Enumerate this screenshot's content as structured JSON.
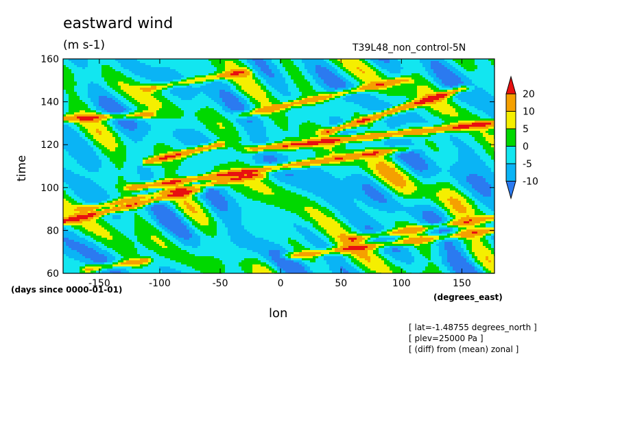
{
  "header": {
    "title": "eastward wind",
    "units": "(m s-1)",
    "run": "T39L48_non_control-5N"
  },
  "notes": [
    "[ lat=-1.48755 degrees_north ]",
    "[ plev=25000 Pa ]",
    "[ (diff) from (mean) zonal ]"
  ],
  "chart_data": {
    "type": "heatmap",
    "title": "eastward wind",
    "xlabel": "lon",
    "ylabel": "time",
    "x_units": "(degrees_east)",
    "y_units": "(days since 0000-01-01)",
    "xlim": [
      -180,
      177
    ],
    "ylim": [
      60,
      160
    ],
    "x_ticks": [
      -150,
      -100,
      -50,
      0,
      50,
      100,
      150
    ],
    "y_ticks": [
      60,
      80,
      100,
      120,
      140,
      160
    ],
    "colorbar": {
      "levels": [
        -10,
        -5,
        0,
        5,
        10,
        20
      ],
      "colors": [
        "#2b7af0",
        "#0ab4f5",
        "#12e6f0",
        "#00d800",
        "#f5ef00",
        "#f5a000",
        "#e81010"
      ]
    },
    "bands": [
      {
        "t0": 84,
        "lon0": -180,
        "t1": 99,
        "lon1": -70,
        "value": 22
      },
      {
        "t0": 90,
        "lon0": -160,
        "t1": 106,
        "lon1": -20,
        "value": 18
      },
      {
        "t0": 100,
        "lon0": -120,
        "t1": 112,
        "lon1": 30,
        "value": 21
      },
      {
        "t0": 104,
        "lon0": -60,
        "t1": 118,
        "lon1": 100,
        "value": 18
      },
      {
        "t0": 112,
        "lon0": -110,
        "t1": 120,
        "lon1": -50,
        "value": 20
      },
      {
        "t0": 118,
        "lon0": -20,
        "t1": 130,
        "lon1": 177,
        "value": 22
      },
      {
        "t0": 126,
        "lon0": 40,
        "t1": 146,
        "lon1": 150,
        "value": 22
      },
      {
        "t0": 132,
        "lon0": -180,
        "t1": 134,
        "lon1": -110,
        "value": 18
      },
      {
        "t0": 134,
        "lon0": -30,
        "t1": 150,
        "lon1": 100,
        "value": 16
      },
      {
        "t0": 146,
        "lon0": -110,
        "t1": 154,
        "lon1": -30,
        "value": 14
      },
      {
        "t0": 62,
        "lon0": -160,
        "t1": 66,
        "lon1": -110,
        "value": 16
      },
      {
        "t0": 68,
        "lon0": 10,
        "t1": 80,
        "lon1": 177,
        "value": 16
      },
      {
        "t0": 76,
        "lon0": 60,
        "t1": 86,
        "lon1": 177,
        "value": 14
      }
    ]
  }
}
